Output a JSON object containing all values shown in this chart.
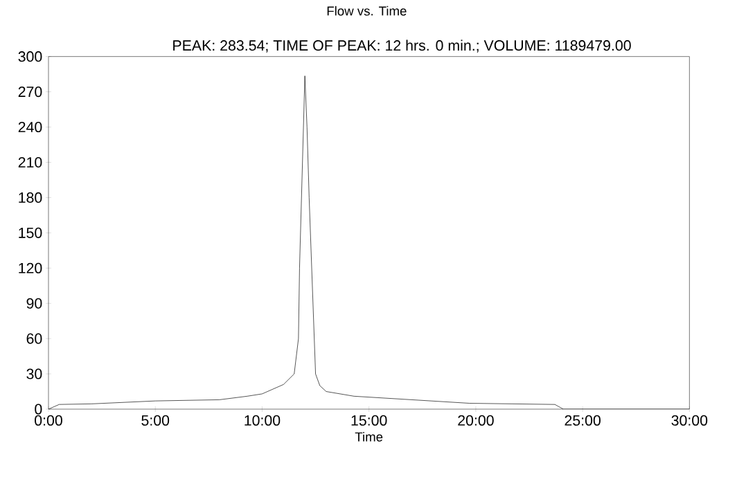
{
  "chart_data": {
    "type": "line",
    "title": "Flow vs. Time",
    "subtitle": "PEAK: 283.54;  TIME OF PEAK: 12 hrs. 0 min.;  VOLUME: 1189479.00",
    "xlabel": "Time",
    "x": [
      0,
      0.5,
      2,
      5,
      8,
      9.3,
      10,
      11,
      11.5,
      11.7,
      11.75,
      12,
      12.1,
      12.2,
      12.5,
      12.7,
      13,
      14.3,
      19.7,
      23.7,
      24.1,
      30
    ],
    "series": [
      {
        "color": "#000000",
        "values": [
          0,
          4,
          4.5,
          7,
          8,
          11,
          13,
          21,
          30,
          60,
          120,
          283.54,
          240,
          180,
          30,
          20,
          15,
          11,
          5,
          4,
          0,
          0
        ]
      }
    ],
    "xlim": [
      0,
      30
    ],
    "ylim": [
      0,
      300
    ],
    "xticks": [
      {
        "value": 0,
        "label": "0:00"
      },
      {
        "value": 5,
        "label": "5:00"
      },
      {
        "value": 10,
        "label": "10:00"
      },
      {
        "value": 15,
        "label": "15:00"
      },
      {
        "value": 20,
        "label": "20:00"
      },
      {
        "value": 25,
        "label": "25:00"
      },
      {
        "value": 30,
        "label": "30:00"
      }
    ],
    "yticks": [
      0,
      30,
      60,
      90,
      120,
      150,
      180,
      210,
      240,
      270,
      300
    ],
    "grid": false,
    "marker": "none",
    "line_style": "solid"
  }
}
